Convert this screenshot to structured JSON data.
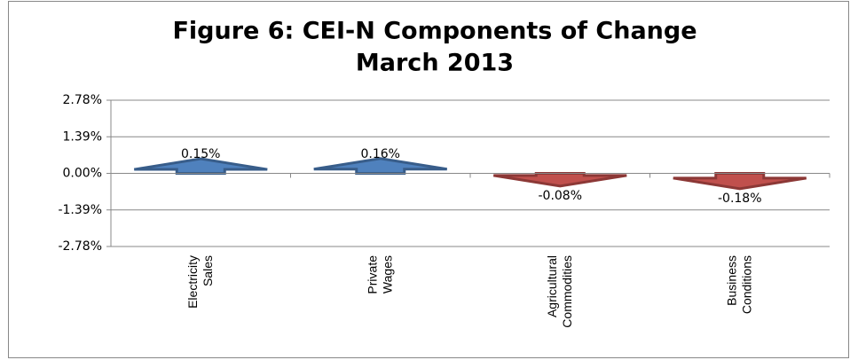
{
  "chart_data": {
    "type": "arrow-bar",
    "title": "Figure 6: CEI-N Components of Change",
    "subtitle": "March 2013",
    "categories": [
      "Electricity Sales",
      "Private Wages",
      "Agricultural Commodities",
      "Business Conditions"
    ],
    "values": [
      0.15,
      0.16,
      -0.08,
      -0.18
    ],
    "value_labels": [
      "0.15%",
      "0.16%",
      "-0.08%",
      "-0.18%"
    ],
    "colors": {
      "positive": "#4f81bd",
      "negative": "#c0504d"
    },
    "ylim": [
      -2.78,
      2.78
    ],
    "yticks": [
      {
        "value": 2.78,
        "label": "2.78%"
      },
      {
        "value": 1.39,
        "label": "1.39%"
      },
      {
        "value": 0,
        "label": "0.00%"
      },
      {
        "value": -1.39,
        "label": "-1.39%"
      },
      {
        "value": -2.78,
        "label": "-2.78%"
      }
    ],
    "grid": true
  }
}
